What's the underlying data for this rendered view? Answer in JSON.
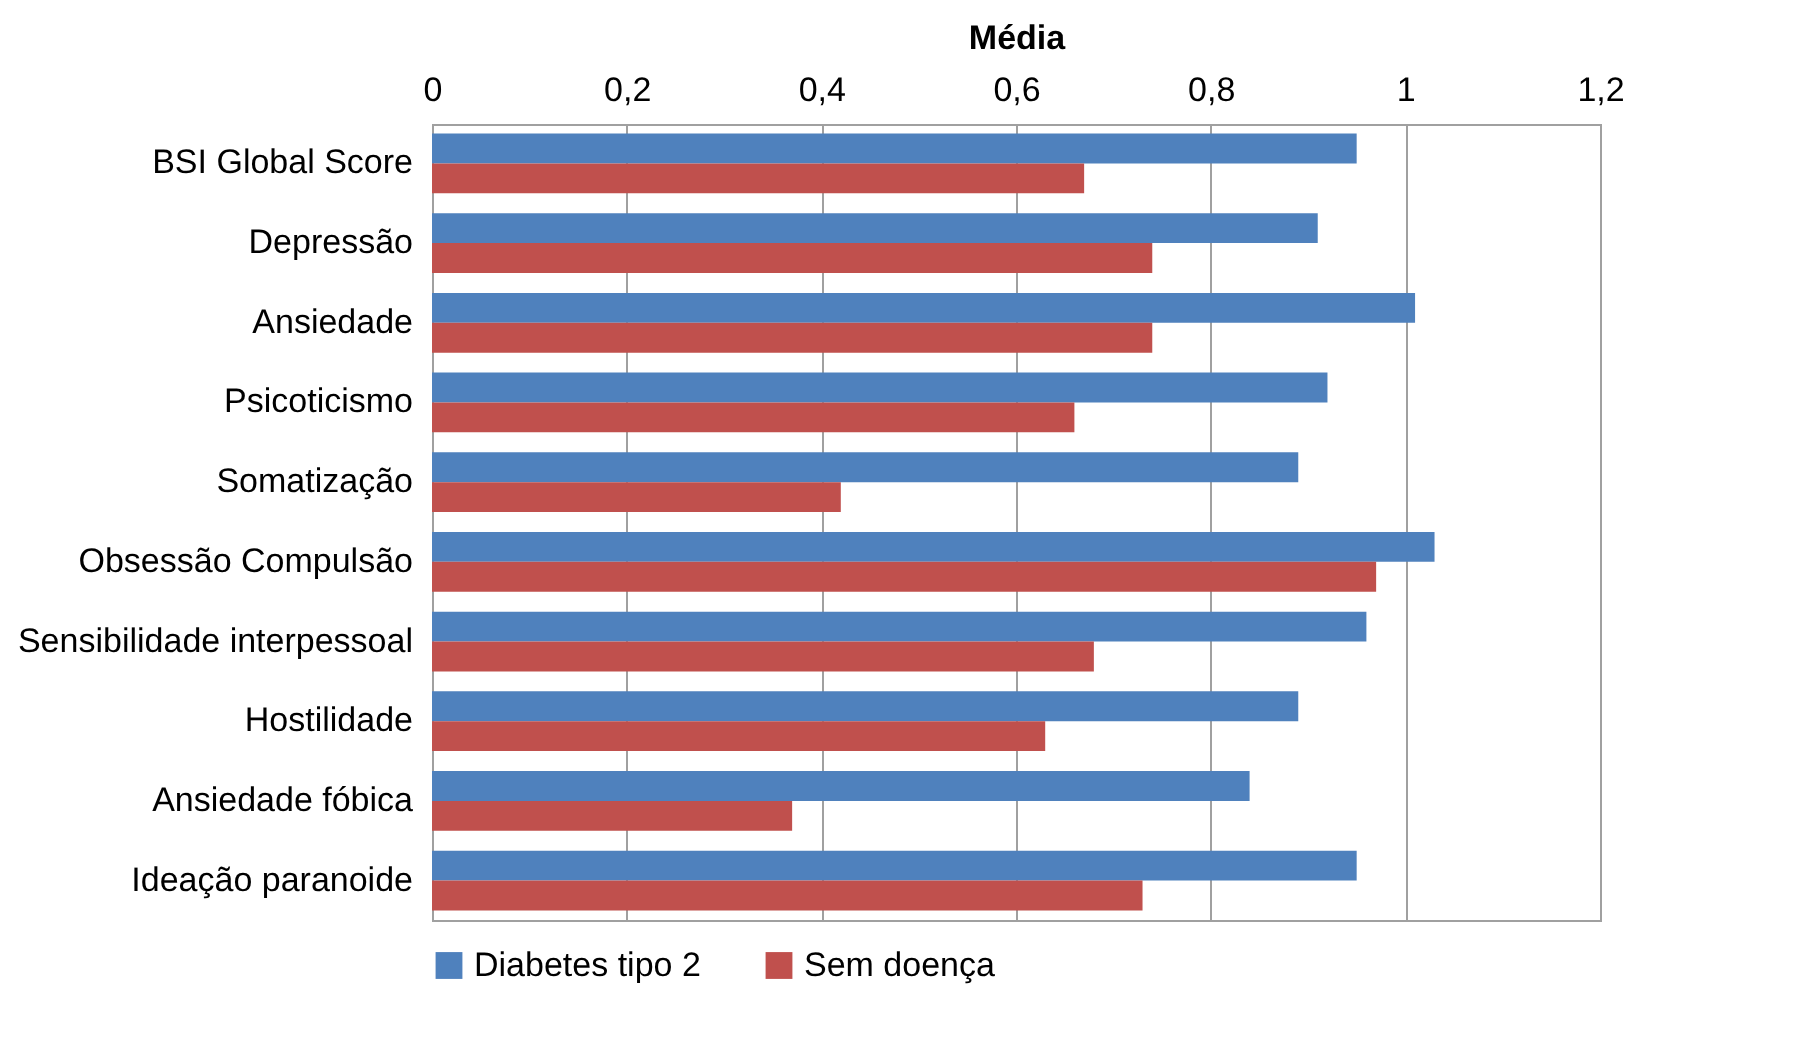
{
  "chart_data": {
    "type": "bar",
    "orientation": "horizontal",
    "xlabel": "Média",
    "categories": [
      "BSI Global Score",
      "Depressão",
      "Ansiedade",
      "Psicoticismo",
      "Somatização",
      "Obsessão Compulsão",
      "Sensibilidade interpessoal",
      "Hostilidade",
      "Ansiedade fóbica",
      "Ideação paranoide"
    ],
    "series": [
      {
        "name": "Diabetes tipo 2",
        "color": "#4f81bd",
        "values": [
          0.95,
          0.91,
          1.01,
          0.92,
          0.89,
          1.03,
          0.96,
          0.89,
          0.84,
          0.95
        ]
      },
      {
        "name": "Sem doença",
        "color": "#c0504d",
        "values": [
          0.67,
          0.74,
          0.74,
          0.66,
          0.42,
          0.97,
          0.68,
          0.63,
          0.37,
          0.73
        ]
      }
    ],
    "xlim": [
      0,
      1.2
    ],
    "xticks": [
      0,
      {
        "value": 0.2,
        "label": "0,2"
      },
      {
        "value": 0.4,
        "label": "0,4"
      },
      {
        "value": 0.6,
        "label": "0,6"
      },
      {
        "value": 0.8,
        "label": "0,8"
      },
      1,
      {
        "value": 1.2,
        "label": "1,2"
      }
    ],
    "grid": "x",
    "legend": "bottom"
  }
}
